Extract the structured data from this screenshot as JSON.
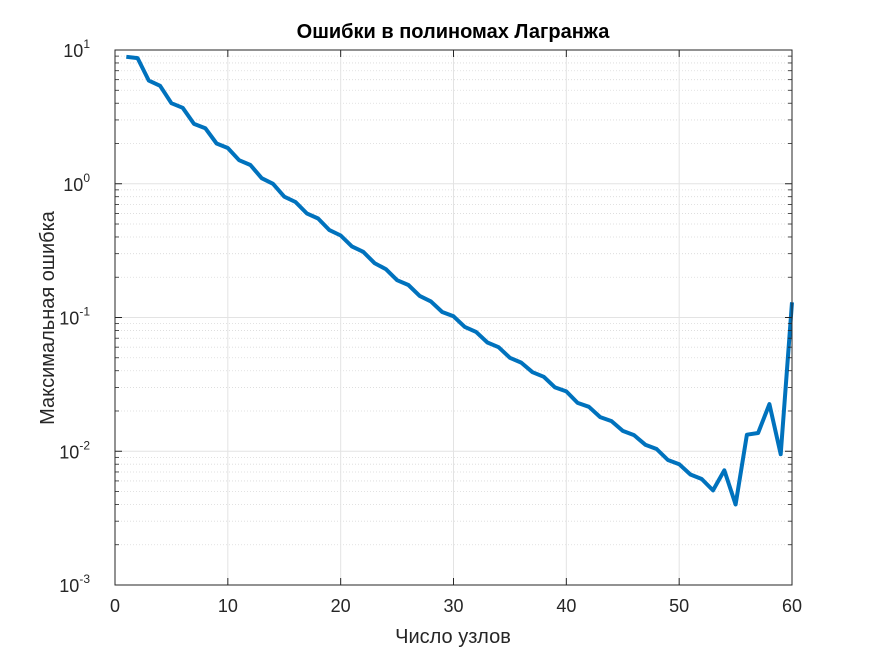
{
  "chart_data": {
    "type": "line",
    "title": "Ошибки в полиномах Лагранжа",
    "xlabel": "Число узлов",
    "ylabel": "Максимальная ошибка",
    "xlim": [
      0,
      60
    ],
    "ylim": [
      0.001,
      10
    ],
    "yscale": "log",
    "grid": true,
    "minor_grid": true,
    "xticks": [
      "0",
      "10",
      "20",
      "30",
      "40",
      "50",
      "60"
    ],
    "yticks": [
      {
        "base": "10",
        "exp": "-3"
      },
      {
        "base": "10",
        "exp": "-2"
      },
      {
        "base": "10",
        "exp": "-1"
      },
      {
        "base": "10",
        "exp": "0"
      },
      {
        "base": "10",
        "exp": "1"
      }
    ],
    "line_color": "#0072BD",
    "series": [
      {
        "x": [
          1,
          2,
          3,
          4,
          5,
          6,
          7,
          8,
          9,
          10,
          11,
          12,
          13,
          14,
          15,
          16,
          17,
          18,
          19,
          20,
          21,
          22,
          23,
          24,
          25,
          26,
          27,
          28,
          29,
          30,
          31,
          32,
          33,
          34,
          35,
          36,
          37,
          38,
          39,
          40,
          41,
          42,
          43,
          44,
          45,
          46,
          47,
          48,
          49,
          50,
          51,
          52,
          53,
          54,
          55,
          56,
          57,
          58,
          59,
          60
        ],
        "values": [
          8.9,
          8.7,
          5.9,
          5.4,
          4.0,
          3.7,
          2.8,
          2.6,
          2.0,
          1.85,
          1.5,
          1.38,
          1.1,
          1.0,
          0.8,
          0.73,
          0.6,
          0.55,
          0.45,
          0.41,
          0.34,
          0.31,
          0.255,
          0.23,
          0.19,
          0.175,
          0.145,
          0.132,
          0.11,
          0.102,
          0.085,
          0.078,
          0.065,
          0.06,
          0.05,
          0.046,
          0.039,
          0.036,
          0.03,
          0.028,
          0.023,
          0.0215,
          0.018,
          0.0168,
          0.0142,
          0.0132,
          0.0112,
          0.0104,
          0.0086,
          0.008,
          0.0067,
          0.0062,
          0.0051,
          0.0072,
          0.004,
          0.0133,
          0.0137,
          0.0225,
          0.0095,
          0.13
        ]
      }
    ]
  }
}
